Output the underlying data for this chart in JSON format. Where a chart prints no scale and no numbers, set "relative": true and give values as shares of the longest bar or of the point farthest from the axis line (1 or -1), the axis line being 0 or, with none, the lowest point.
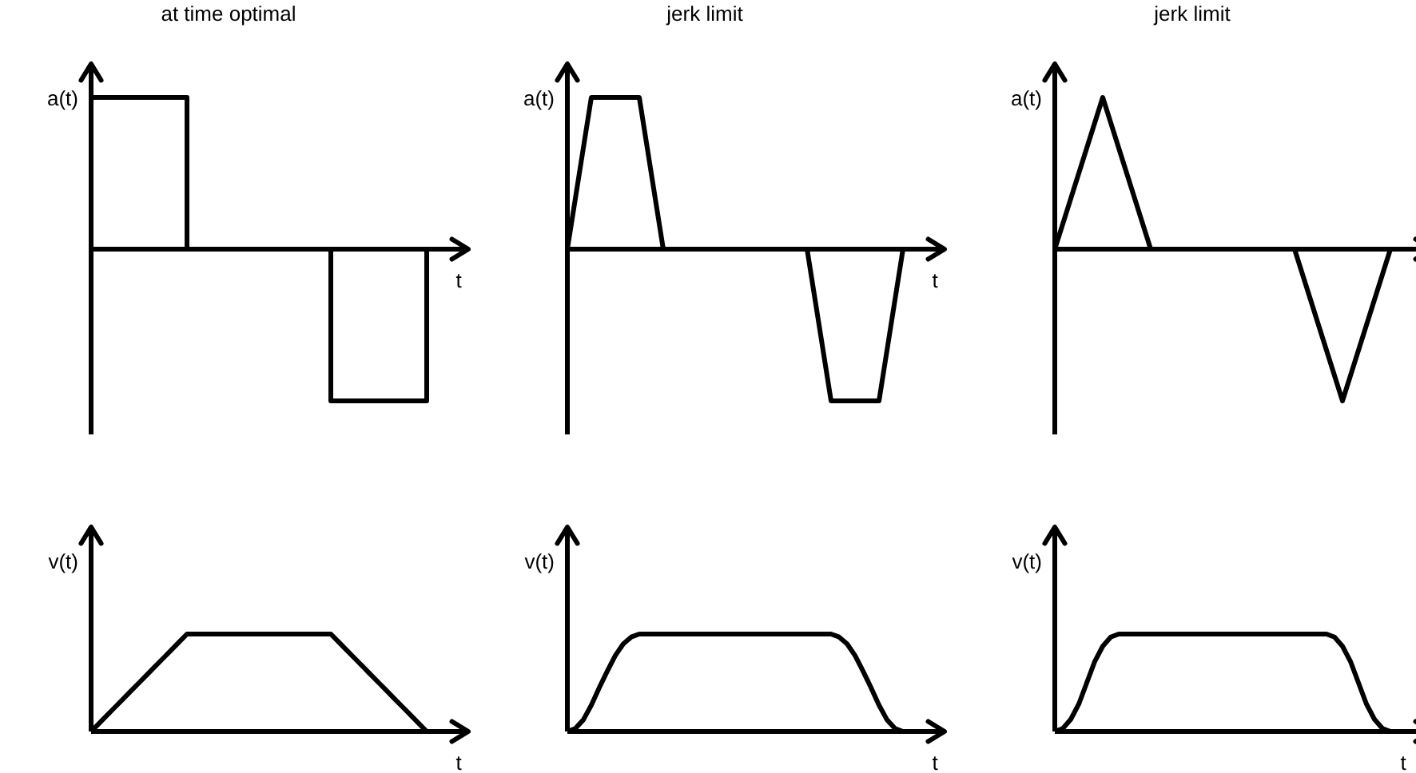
{
  "chart_data": [
    {
      "type": "step",
      "title": "at time optimal",
      "ylabel": "a(t)",
      "xlabel": "t",
      "relative": true,
      "categories": [
        null,
        null,
        null,
        null,
        null,
        null,
        null,
        null,
        null,
        null,
        null,
        null,
        null,
        null,
        null
      ],
      "series": [
        {
          "color": "#000000",
          "values": [
            1,
            1,
            1,
            1,
            0,
            0,
            0,
            0,
            0,
            0,
            -1,
            -1,
            -1,
            -1,
            0
          ]
        }
      ]
    },
    {
      "type": "line",
      "title": "jerk limit",
      "ylabel": "a(t)",
      "xlabel": "t",
      "relative": true,
      "categories": [
        null,
        null,
        null,
        null,
        null,
        null,
        null,
        null,
        null,
        null,
        null,
        null,
        null,
        null,
        null
      ],
      "series": [
        {
          "color": "#000000",
          "values": [
            0,
            1,
            1,
            1,
            0,
            0,
            0,
            0,
            0,
            0,
            0,
            -1,
            -1,
            -1,
            0
          ]
        }
      ]
    },
    {
      "type": "line",
      "title": "jerk limit",
      "ylabel": "a(t)",
      "relative": true,
      "categories": [
        null,
        null,
        null,
        null,
        null,
        null,
        null,
        null,
        null,
        null,
        null,
        null,
        null,
        null,
        null
      ],
      "series": [
        {
          "color": "#000000",
          "values": [
            0,
            0.5,
            1,
            0.5,
            0,
            0,
            0,
            0,
            0,
            0,
            0,
            -0.5,
            -1,
            -0.5,
            0
          ]
        }
      ]
    },
    {
      "type": "line",
      "ylabel": "v(t)",
      "xlabel": "t",
      "relative": true,
      "categories": [
        null,
        null,
        null,
        null,
        null,
        null,
        null,
        null,
        null,
        null,
        null,
        null,
        null,
        null,
        null,
        null,
        null,
        null,
        null,
        null,
        null,
        null,
        null,
        null,
        null,
        null,
        null,
        null,
        null,
        null,
        null,
        null,
        null,
        null,
        null,
        null,
        null,
        null,
        null,
        null,
        null,
        null,
        null
      ],
      "series": [
        {
          "color": "#000000",
          "values": [
            0,
            0.083,
            0.167,
            0.25,
            0.333,
            0.417,
            0.5,
            0.583,
            0.667,
            0.75,
            0.833,
            0.917,
            1,
            1,
            1,
            1,
            1,
            1,
            1,
            1,
            1,
            1,
            1,
            1,
            1,
            1,
            1,
            1,
            1,
            1,
            1,
            0.917,
            0.833,
            0.75,
            0.667,
            0.583,
            0.5,
            0.417,
            0.333,
            0.25,
            0.167,
            0.083,
            0
          ]
        }
      ]
    },
    {
      "type": "line",
      "ylabel": "v(t)",
      "xlabel": "t",
      "relative": true,
      "categories": [
        null,
        null,
        null,
        null,
        null,
        null,
        null,
        null,
        null,
        null,
        null,
        null,
        null,
        null,
        null,
        null,
        null,
        null,
        null,
        null,
        null,
        null,
        null,
        null,
        null,
        null,
        null,
        null,
        null,
        null,
        null,
        null,
        null,
        null,
        null,
        null,
        null,
        null,
        null,
        null,
        null,
        null,
        null
      ],
      "series": [
        {
          "color": "#000000",
          "values": [
            0,
            0.03,
            0.12,
            0.27,
            0.45,
            0.62,
            0.78,
            0.9,
            0.97,
            1,
            1,
            1,
            1,
            1,
            1,
            1,
            1,
            1,
            1,
            1,
            1,
            1,
            1,
            1,
            1,
            1,
            1,
            1,
            1,
            1,
            1,
            1,
            1,
            1,
            0.97,
            0.9,
            0.78,
            0.62,
            0.45,
            0.27,
            0.12,
            0.03,
            0
          ]
        }
      ]
    },
    {
      "type": "line",
      "ylabel": "v(t)",
      "xlabel": "t",
      "relative": true,
      "categories": [
        null,
        null,
        null,
        null,
        null,
        null,
        null,
        null,
        null,
        null,
        null,
        null,
        null,
        null,
        null,
        null,
        null,
        null,
        null,
        null,
        null,
        null,
        null,
        null,
        null,
        null,
        null,
        null,
        null,
        null,
        null,
        null,
        null,
        null,
        null,
        null,
        null,
        null,
        null,
        null,
        null,
        null,
        null
      ],
      "series": [
        {
          "color": "#000000",
          "values": [
            0,
            0.031,
            0.125,
            0.281,
            0.5,
            0.719,
            0.875,
            0.969,
            1,
            1,
            1,
            1,
            1,
            1,
            1,
            1,
            1,
            1,
            1,
            1,
            1,
            1,
            1,
            1,
            1,
            1,
            1,
            1,
            1,
            1,
            1,
            1,
            1,
            1,
            1,
            0.969,
            0.875,
            0.719,
            0.5,
            0.281,
            0.125,
            0.031,
            0
          ]
        }
      ]
    }
  ]
}
